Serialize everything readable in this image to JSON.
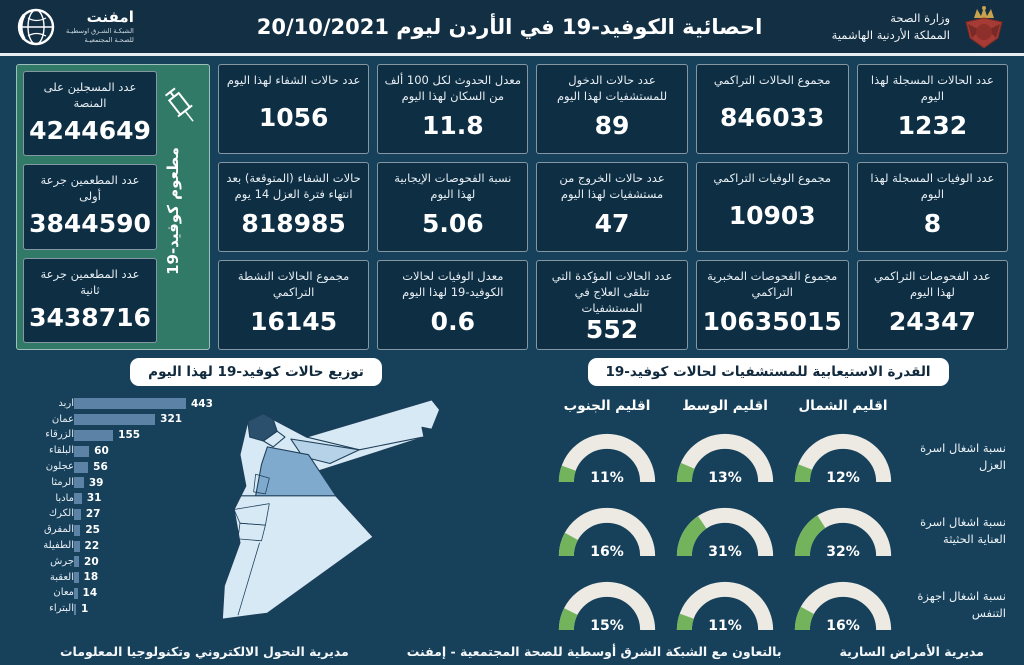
{
  "header": {
    "title": "احصائية الكوفيد-19 في الأردن ليوم  20/10/2021",
    "ministry_line1": "وزارة الصحة",
    "ministry_line2": "المملكة الأردنية الهاشمية",
    "emphnet_name": "امفنت",
    "emphnet_sub1": "الشبكـة الشـرق اوسطيـة",
    "emphnet_sub2": "للصحـة المجتمعيـة"
  },
  "stats_cards": [
    {
      "label": "عدد الحالات المسجلة لهذا اليوم",
      "value": "1232"
    },
    {
      "label": "مجموع الحالات التراكمي",
      "value": "846033"
    },
    {
      "label": "عدد حالات الدخول للمستشفيات لهذا اليوم",
      "value": "89"
    },
    {
      "label": "معدل الحدوث لكل 100 ألف من السكان لهذا اليوم",
      "value": "11.8"
    },
    {
      "label": "عدد حالات الشفاء لهذا اليوم",
      "value": "1056"
    },
    {
      "label": "عدد الوفيات المسجلة لهذا اليوم",
      "value": "8"
    },
    {
      "label": "مجموع الوفيات التراكمي",
      "value": "10903"
    },
    {
      "label": "عدد حالات الخروج من مستشفيات لهذا اليوم",
      "value": "47"
    },
    {
      "label": "نسبة الفحوصات الإيجابية لهذا اليوم",
      "value": "5.06"
    },
    {
      "label": "حالات الشفاء (المتوقعة) بعد انتهاء فترة العزل 14 يوم",
      "value": "818985"
    },
    {
      "label": "عدد الفحوصات التراكمي لهذا اليوم",
      "value": "24347"
    },
    {
      "label": "مجموع الفحوصات المخبرية التراكمي",
      "value": "10635015"
    },
    {
      "label": "عدد الحالات المؤكدة التي تتلقى العلاج في المستشفيات",
      "value": "552"
    },
    {
      "label": "معدل الوفيات لحالات الكوفيد-19 لهذا اليوم",
      "value": "0.6"
    },
    {
      "label": "مجموع الحالات النشطة التراكمي",
      "value": "16145"
    }
  ],
  "vaccination_panel": {
    "vertical_label": "مطعوم كوفيد-19",
    "cards": [
      {
        "label": "عدد المسجلين على المنصة",
        "value": "4244649"
      },
      {
        "label": "عدد المطعمين جرعة أولى",
        "value": "3844590"
      },
      {
        "label": "عدد المطعمين جرعة ثانية",
        "value": "3438716"
      }
    ]
  },
  "section_titles": {
    "distribution": "توزيع حالات كوفيد-19 لهذا اليوم",
    "capacity": "القدرة الاستيعابية للمستشفيات لحالات كوفيد-19"
  },
  "chart_data": [
    {
      "type": "bar",
      "orientation": "horizontal",
      "title": "توزيع حالات كوفيد-19 لهذا اليوم",
      "categories": [
        "اربد",
        "عمان",
        "الزرقاء",
        "البلقاء",
        "عجلون",
        "الرمثا",
        "مادبا",
        "الكرك",
        "المفرق",
        "الطفيلة",
        "جرش",
        "العقبة",
        "معان",
        "البتراء"
      ],
      "values": [
        443,
        321,
        155,
        60,
        56,
        39,
        31,
        27,
        25,
        22,
        20,
        18,
        14,
        1
      ],
      "xlim": [
        0,
        460
      ],
      "bar_color": "#5c82a6",
      "value_labels": true
    },
    {
      "type": "gauge",
      "title": "القدرة الاستيعابية للمستشفيات لحالات كوفيد-19",
      "unit": "%",
      "columns": [
        "اقليم الشمال",
        "اقليم الوسط",
        "اقليم الجنوب"
      ],
      "rows": [
        {
          "label": "نسبة اشغال اسرة العزل",
          "values": [
            12,
            13,
            11
          ]
        },
        {
          "label": "نسبة اشغال اسرة العناية الحثيثة",
          "values": [
            32,
            31,
            16
          ]
        },
        {
          "label": "نسبة اشغال اجهزة التنفس",
          "values": [
            16,
            11,
            15
          ]
        }
      ]
    }
  ],
  "footer": {
    "right": "مديرية الأمراض السارية",
    "center": "بالتعاون مع الشبكة الشرق أوسطية للصحة المجتمعية - إمفنت",
    "left": "مديرية التحول الالكتروني وتكنولوجيا المعلومات"
  },
  "colors": {
    "page_bg": "#17415b",
    "header_bg": "#132f44",
    "card_bg": "#0d2e43",
    "vax_panel_bg": "#317a67",
    "bar": "#5c82a6",
    "gauge_green": "#72b35c",
    "gauge_track": "#eceae3",
    "map_base": "#d8e9f6",
    "map_amman": "#7fa9cd",
    "map_zarqa": "#b6d2e8",
    "map_irbid": "#2b506e",
    "emblem_red": "#a63a34",
    "emblem_gold": "#c8a24d"
  }
}
